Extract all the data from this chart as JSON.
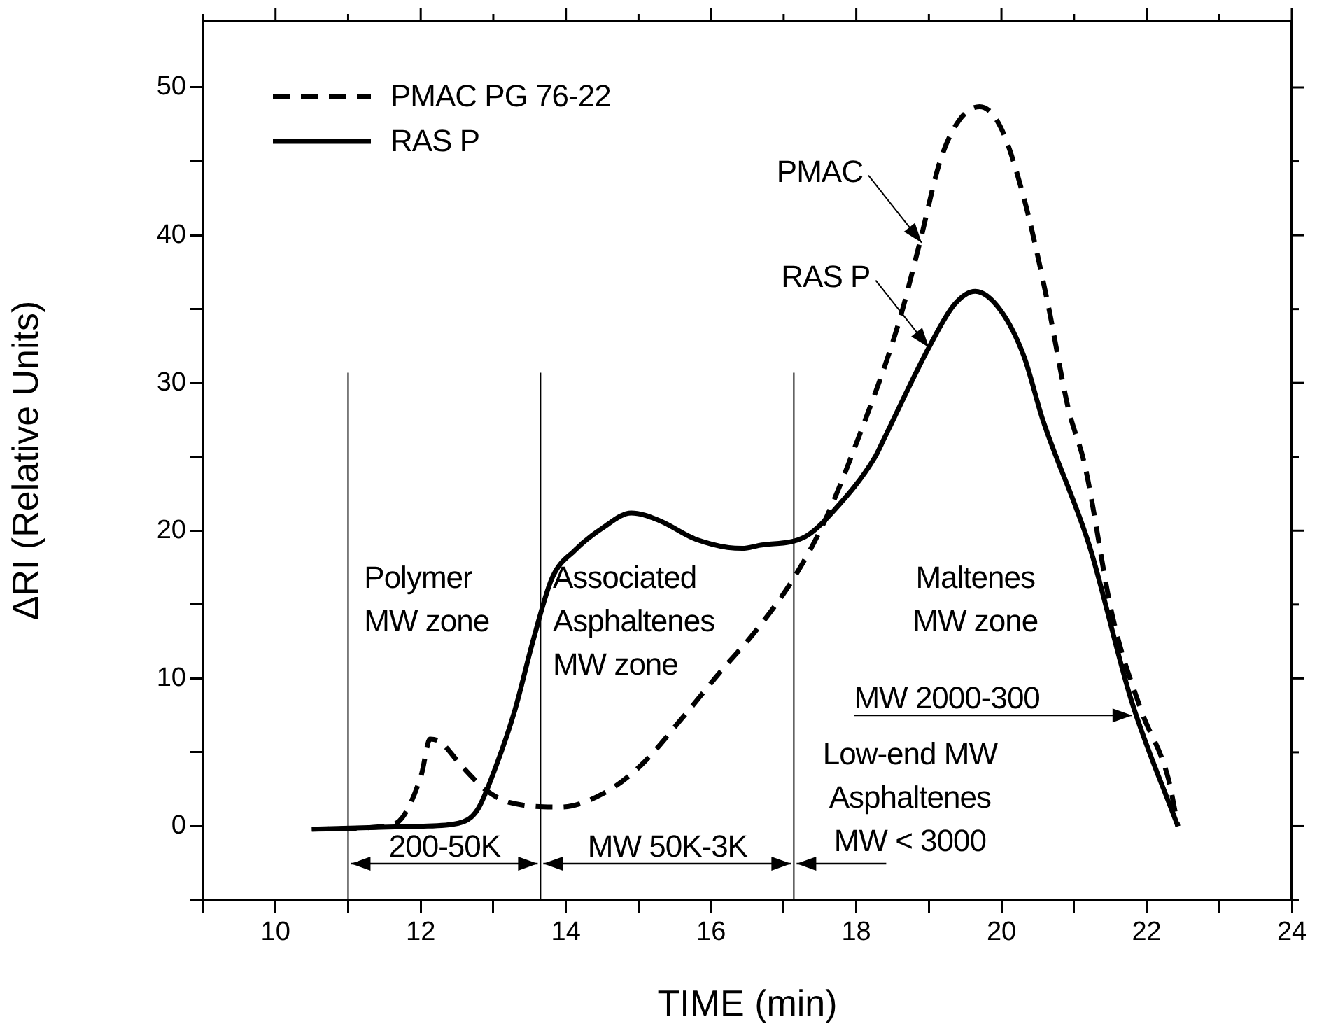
{
  "chart_data": {
    "type": "line",
    "xlabel": "TIME (min)",
    "ylabel": "ΔRI (Relative Units)",
    "xlim": [
      9,
      24
    ],
    "ylim": [
      -5,
      54.5
    ],
    "xticks": [
      {
        "value": 9,
        "label": null
      },
      10,
      {
        "value": 11,
        "label": null
      },
      12,
      {
        "value": 13,
        "label": null
      },
      14,
      {
        "value": 15,
        "label": null
      },
      16,
      {
        "value": 17,
        "label": null
      },
      18,
      {
        "value": 19,
        "label": null
      },
      20,
      {
        "value": 21,
        "label": null
      },
      22,
      {
        "value": 23,
        "label": null
      },
      24
    ],
    "yticks": [
      {
        "value": -5,
        "label": null
      },
      0,
      {
        "value": 5,
        "label": null
      },
      10,
      {
        "value": 15,
        "label": null
      },
      20,
      {
        "value": 25,
        "label": null
      },
      30,
      {
        "value": 35,
        "label": null
      },
      40,
      {
        "value": 45,
        "label": null
      },
      50
    ],
    "grid": false,
    "legend": "top left",
    "marker": "none",
    "series": [
      {
        "name": "PMAC PG 76-22",
        "color": "#000000",
        "line_style": "dashed",
        "x": [
          10.5,
          11.5,
          11.75,
          12.01,
          12.13,
          12.27,
          12.56,
          12.91,
          13.23,
          13.93,
          14.51,
          15.03,
          15.6,
          16.12,
          16.63,
          17.14,
          17.56,
          18.0,
          18.58,
          18.87,
          19.16,
          19.42,
          19.7,
          19.99,
          20.31,
          20.63,
          20.92,
          21.15,
          21.53,
          21.92,
          22.3,
          22.43
        ],
        "values": [
          -0.2,
          0,
          0.6,
          3.5,
          5.9,
          5.7,
          4.1,
          2.4,
          1.6,
          1.3,
          2.2,
          4.1,
          7.3,
          10.4,
          13.3,
          16.8,
          20.6,
          25.9,
          34.0,
          39.4,
          45.1,
          47.8,
          48.7,
          47.3,
          42.5,
          35.6,
          28.3,
          24.4,
          14.2,
          7.9,
          3.2,
          0
        ]
      },
      {
        "name": "RAS P",
        "color": "#000000",
        "line_style": "solid",
        "x": [
          10.5,
          12.0,
          12.52,
          12.78,
          13.04,
          13.3,
          13.55,
          13.81,
          14.13,
          14.51,
          14.9,
          15.28,
          15.8,
          16.43,
          16.66,
          17.3,
          17.68,
          18.26,
          18.39,
          19.0,
          19.35,
          19.64,
          19.99,
          20.31,
          20.57,
          21.21,
          21.79,
          22.43
        ],
        "values": [
          -0.2,
          0,
          0.2,
          1.1,
          4.1,
          7.9,
          12.6,
          16.8,
          18.7,
          20.2,
          21.2,
          20.7,
          19.4,
          18.8,
          19.0,
          19.6,
          21.3,
          25.0,
          26.3,
          32.4,
          35.3,
          36.2,
          34.9,
          31.8,
          27.5,
          19.0,
          8.5,
          0
        ]
      }
    ],
    "ref_lines": [
      {
        "axis": "x",
        "value": 11,
        "color": "#000000"
      },
      {
        "axis": "x",
        "value": 13.65,
        "color": "#000000"
      },
      {
        "axis": "x",
        "value": 17.14,
        "color": "#000000"
      }
    ],
    "annotations": [
      "Polymer\nMW zone",
      "Associated\nAsphaltenes\nMW zone",
      "Maltenes\nMW zone",
      {
        "text": "MW 2000-300",
        "x": 21.8,
        "y": 7.5
      },
      "Low-end MW\nAsphaltenes\nMW < 3000",
      "200-50K",
      "MW 50K-3K",
      {
        "text": "PMAC",
        "x": 18.9,
        "y": 39.5
      },
      {
        "text": "RAS P",
        "x": 19.0,
        "y": 32.4
      }
    ]
  }
}
